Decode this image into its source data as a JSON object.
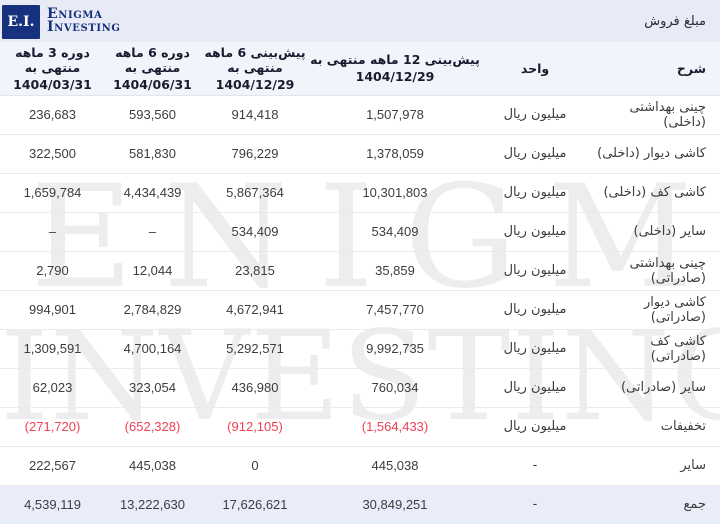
{
  "brand": {
    "logo_initials": "E.I.",
    "name_line1": "Enigma",
    "name_line2": "Investing"
  },
  "page_title": "مبلغ فروش",
  "watermark": {
    "line1": "ENIGMA",
    "line2": "INVESTING"
  },
  "colors": {
    "negative": "#ee4154",
    "navy": "#16317e",
    "band_bg": "#e8ebf6",
    "header_bg": "#f2f4fb",
    "total_bg": "#e9edf9"
  },
  "table": {
    "headers": {
      "desc": "شرح",
      "unit": "واحد",
      "cols": [
        {
          "title": "پیش‌بینی 12 ماهه منتهی به",
          "date": "1404/12/29"
        },
        {
          "title": "پیش‌بینی 6 ماهه منتهی به",
          "date": "1404/12/29"
        },
        {
          "title": "دوره 6 ماهه منتهی به",
          "date": "1404/06/31"
        },
        {
          "title": "دوره 3 ماهه منتهی به",
          "date": "1404/03/31"
        }
      ]
    },
    "rows": [
      {
        "desc": "چینی بهداشتی (داخلی)",
        "unit": "میلیون ریال",
        "values": [
          "1,507,978",
          "914,418",
          "593,560",
          "236,683"
        ],
        "negative": false,
        "total": false
      },
      {
        "desc": "کاشی دیوار (داخلی)",
        "unit": "میلیون ریال",
        "values": [
          "1,378,059",
          "796,229",
          "581,830",
          "322,500"
        ],
        "negative": false,
        "total": false
      },
      {
        "desc": "کاشی کف (داخلی)",
        "unit": "میلیون ریال",
        "values": [
          "10,301,803",
          "5,867,364",
          "4,434,439",
          "1,659,784"
        ],
        "negative": false,
        "total": false
      },
      {
        "desc": "سایر (داخلی)",
        "unit": "میلیون ریال",
        "values": [
          "534,409",
          "534,409",
          "–",
          "–"
        ],
        "negative": false,
        "total": false
      },
      {
        "desc": "چینی بهداشتی (صادراتی)",
        "unit": "میلیون ریال",
        "values": [
          "35,859",
          "23,815",
          "12,044",
          "2,790"
        ],
        "negative": false,
        "total": false
      },
      {
        "desc": "کاشی دیوار (صادراتی)",
        "unit": "میلیون ریال",
        "values": [
          "7,457,770",
          "4,672,941",
          "2,784,829",
          "994,901"
        ],
        "negative": false,
        "total": false
      },
      {
        "desc": "کاشی کف (صادراتی)",
        "unit": "میلیون ریال",
        "values": [
          "9,992,735",
          "5,292,571",
          "4,700,164",
          "1,309,591"
        ],
        "negative": false,
        "total": false
      },
      {
        "desc": "سایر (صادراتی)",
        "unit": "میلیون ریال",
        "values": [
          "760,034",
          "436,980",
          "323,054",
          "62,023"
        ],
        "negative": false,
        "total": false
      },
      {
        "desc": "تخفیفات",
        "unit": "میلیون ریال",
        "values": [
          "(1,564,433)",
          "(912,105)",
          "(652,328)",
          "(271,720)"
        ],
        "negative": true,
        "total": false
      },
      {
        "desc": "سایر",
        "unit": "-",
        "values": [
          "445,038",
          "0",
          "445,038",
          "222,567"
        ],
        "negative": false,
        "total": false
      },
      {
        "desc": "جمع",
        "unit": "-",
        "values": [
          "30,849,251",
          "17,626,621",
          "13,222,630",
          "4,539,119"
        ],
        "negative": false,
        "total": true
      }
    ]
  }
}
